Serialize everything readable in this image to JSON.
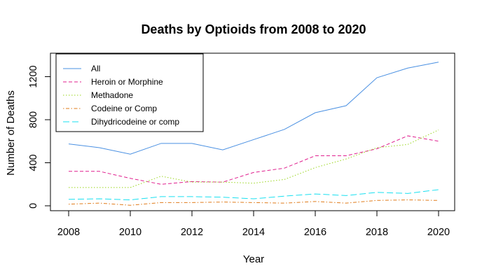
{
  "chart_data": {
    "type": "line",
    "title": "Deaths by Optioids from 2008 to 2020",
    "xlabel": "Year",
    "ylabel": "Number of Deaths",
    "x": [
      2008,
      2009,
      2010,
      2011,
      2012,
      2013,
      2014,
      2015,
      2016,
      2017,
      2018,
      2019,
      2020
    ],
    "xlim": [
      2008,
      2020
    ],
    "ylim": [
      0,
      1340
    ],
    "x_ticks": [
      2008,
      2010,
      2012,
      2014,
      2016,
      2018,
      2020
    ],
    "y_ticks": [
      0,
      400,
      800,
      1200
    ],
    "legend_position": "top-left",
    "grid": false,
    "series": [
      {
        "name": "All",
        "color": "#4a90e2",
        "dash": "solid",
        "values": [
          575,
          540,
          480,
          580,
          580,
          520,
          615,
          710,
          865,
          930,
          1190,
          1280,
          1335
        ]
      },
      {
        "name": "Heroin or Morphine",
        "color": "#e0208f",
        "dash": "dashed",
        "values": [
          320,
          320,
          255,
          200,
          225,
          220,
          310,
          350,
          465,
          465,
          530,
          650,
          600
        ]
      },
      {
        "name": "Methadone",
        "color": "#9ad61e",
        "dash": "dotted",
        "values": [
          170,
          170,
          170,
          275,
          220,
          220,
          210,
          245,
          355,
          435,
          540,
          570,
          705
        ]
      },
      {
        "name": "Codeine or Comp",
        "color": "#e07b1a",
        "dash": "dotdash",
        "values": [
          15,
          25,
          5,
          30,
          30,
          35,
          30,
          25,
          40,
          25,
          50,
          55,
          50
        ]
      },
      {
        "name": "Dihydricodeine or comp",
        "color": "#19e0f0",
        "dash": "longdash",
        "values": [
          60,
          65,
          55,
          85,
          85,
          80,
          65,
          90,
          110,
          95,
          125,
          115,
          150
        ]
      }
    ]
  }
}
